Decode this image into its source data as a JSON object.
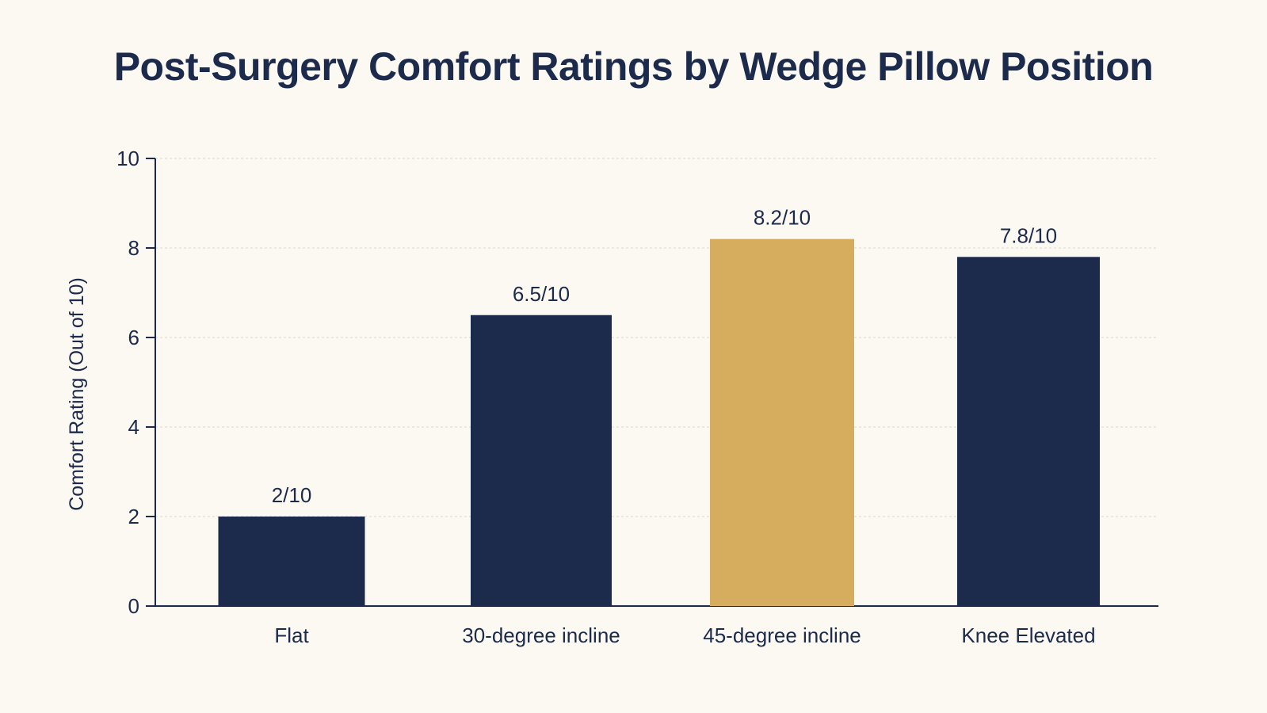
{
  "chart_data": {
    "type": "bar",
    "title": "Post-Surgery Comfort Ratings by Wedge Pillow Position",
    "xlabel": "",
    "ylabel": "Comfort Rating (Out of 10)",
    "categories": [
      "Flat",
      "30-degree incline",
      "45-degree incline",
      "Knee Elevated"
    ],
    "values": [
      2,
      6.5,
      8.2,
      7.8
    ],
    "data_labels": [
      "2/10",
      "6.5/10",
      "8.2/10",
      "7.8/10"
    ],
    "bar_colors": [
      "#1c2a4b",
      "#1c2a4b",
      "#d6ac5e",
      "#1c2a4b"
    ],
    "ylim": [
      0,
      10
    ],
    "yticks": [
      0,
      2,
      4,
      6,
      8,
      10
    ],
    "grid": true,
    "legend": "none"
  },
  "colors": {
    "background": "#fcf9f2",
    "text": "#1c2a4b",
    "bar_primary": "#1c2a4b",
    "bar_highlight": "#d6ac5e",
    "gridline": "#d9d6cc"
  }
}
